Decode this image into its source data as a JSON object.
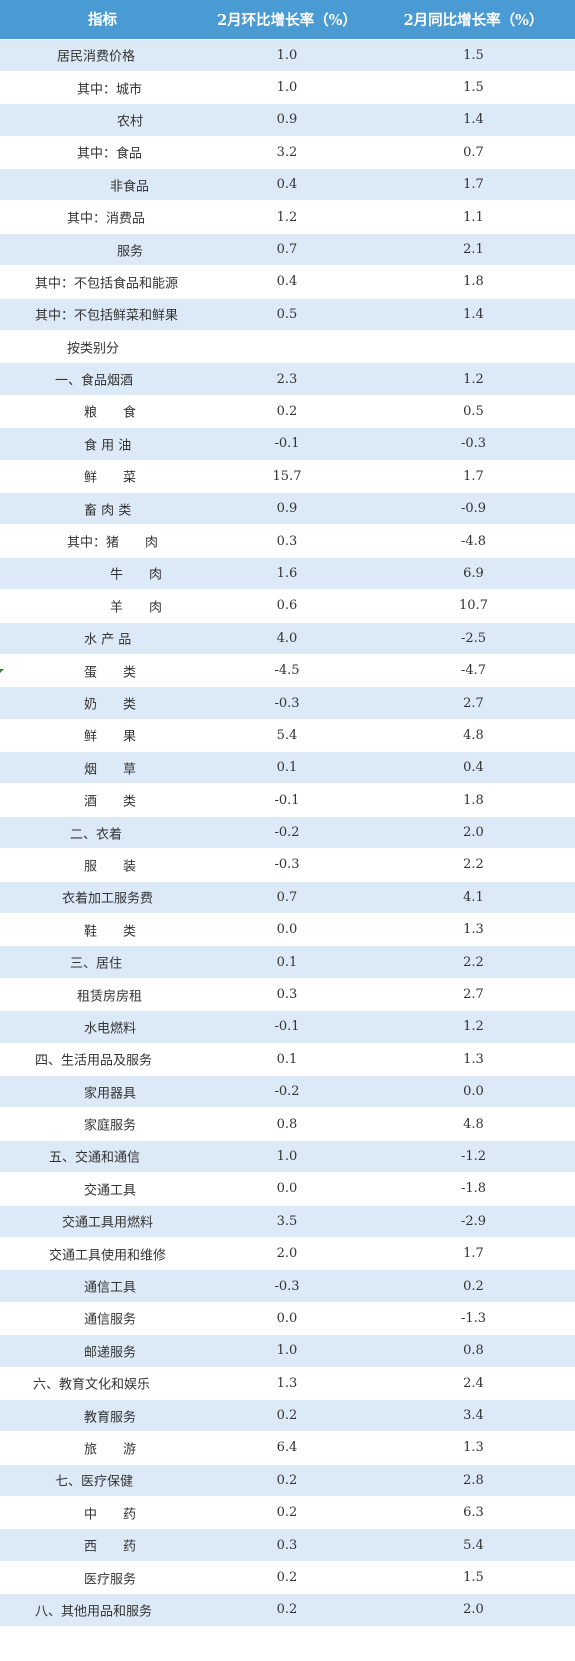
{
  "header": {
    "col1": "指标",
    "col2": "2月环比增长率（%）",
    "col3": "2月同比增长率（%）"
  },
  "rows": [
    {
      "name": "居民消费价格",
      "mom": "1.0",
      "yoy": "1.5"
    },
    {
      "name": "其中：城市",
      "mom": "1.0",
      "yoy": "1.5"
    },
    {
      "name": "农村",
      "mom": "0.9",
      "yoy": "1.4"
    },
    {
      "name": "其中：食品",
      "mom": "3.2",
      "yoy": "0.7"
    },
    {
      "name": "非食品",
      "mom": "0.4",
      "yoy": "1.7"
    },
    {
      "name": "其中：消费品",
      "mom": "1.2",
      "yoy": "1.1"
    },
    {
      "name": "服务",
      "mom": "0.7",
      "yoy": "2.1"
    },
    {
      "name": "其中：不包括食品和能源",
      "mom": "0.4",
      "yoy": "1.8"
    },
    {
      "name": "其中：不包括鲜菜和鲜果",
      "mom": "0.5",
      "yoy": "1.4"
    },
    {
      "name": "按类别分",
      "mom": "",
      "yoy": ""
    },
    {
      "name": "一、食品烟酒",
      "mom": "2.3",
      "yoy": "1.2"
    },
    {
      "name": "粮　　食",
      "mom": "0.2",
      "yoy": "0.5"
    },
    {
      "name": "食 用 油",
      "mom": "-0.1",
      "yoy": "-0.3"
    },
    {
      "name": "鲜　　菜",
      "mom": "15.7",
      "yoy": "1.7"
    },
    {
      "name": "畜 肉 类",
      "mom": "0.9",
      "yoy": "-0.9"
    },
    {
      "name": "其中：猪　　肉",
      "mom": "0.3",
      "yoy": "-4.8"
    },
    {
      "name": "牛　　肉",
      "mom": "1.6",
      "yoy": "6.9"
    },
    {
      "name": "羊　　肉",
      "mom": "0.6",
      "yoy": "10.7"
    },
    {
      "name": "水 产 品",
      "mom": "4.0",
      "yoy": "-2.5"
    },
    {
      "name": "蛋　　类",
      "mom": "-4.5",
      "yoy": "-4.7"
    },
    {
      "name": "奶　　类",
      "mom": "-0.3",
      "yoy": "2.7"
    },
    {
      "name": "鲜　　果",
      "mom": "5.4",
      "yoy": "4.8"
    },
    {
      "name": "烟　　草",
      "mom": "0.1",
      "yoy": "0.4"
    },
    {
      "name": "酒　　类",
      "mom": "-0.1",
      "yoy": "1.8"
    },
    {
      "name": "二、衣着",
      "mom": "-0.2",
      "yoy": "2.0"
    },
    {
      "name": "服　　装",
      "mom": "-0.3",
      "yoy": "2.2"
    },
    {
      "name": "衣着加工服务费",
      "mom": "0.7",
      "yoy": "4.1"
    },
    {
      "name": "鞋　　类",
      "mom": "0.0",
      "yoy": "1.3"
    },
    {
      "name": "三、居住",
      "mom": "0.1",
      "yoy": "2.2"
    },
    {
      "name": "租赁房房租",
      "mom": "0.3",
      "yoy": "2.7"
    },
    {
      "name": "水电燃料",
      "mom": "-0.1",
      "yoy": "1.2"
    },
    {
      "name": "四、生活用品及服务",
      "mom": "0.1",
      "yoy": "1.3"
    },
    {
      "name": "家用器具",
      "mom": "-0.2",
      "yoy": "0.0"
    },
    {
      "name": "家庭服务",
      "mom": "0.8",
      "yoy": "4.8"
    },
    {
      "name": "五、交通和通信",
      "mom": "1.0",
      "yoy": "-1.2"
    },
    {
      "name": "交通工具",
      "mom": "0.0",
      "yoy": "-1.8"
    },
    {
      "name": "交通工具用燃料",
      "mom": "3.5",
      "yoy": "-2.9"
    },
    {
      "name": "交通工具使用和维修",
      "mom": "2.0",
      "yoy": "1.7"
    },
    {
      "name": "通信工具",
      "mom": "-0.3",
      "yoy": "0.2"
    },
    {
      "name": "通信服务",
      "mom": "0.0",
      "yoy": "-1.3"
    },
    {
      "name": "邮递服务",
      "mom": "1.0",
      "yoy": "0.8"
    },
    {
      "name": "六、教育文化和娱乐",
      "mom": "1.3",
      "yoy": "2.4"
    },
    {
      "name": "教育服务",
      "mom": "0.2",
      "yoy": "3.4"
    },
    {
      "name": "旅　　游",
      "mom": "6.4",
      "yoy": "1.3"
    },
    {
      "name": "七、医疗保健",
      "mom": "0.2",
      "yoy": "2.8"
    },
    {
      "name": "中　　药",
      "mom": "0.2",
      "yoy": "6.3"
    },
    {
      "name": "西　　药",
      "mom": "0.3",
      "yoy": "5.4"
    },
    {
      "name": "医疗服务",
      "mom": "0.2",
      "yoy": "1.5"
    },
    {
      "name": "八、其他用品和服务",
      "mom": "0.2",
      "yoy": "2.0"
    }
  ],
  "colors": {
    "header_bg": "#4a9ad4",
    "alt_row_bg": "#dce9f6",
    "text": "#333333"
  }
}
